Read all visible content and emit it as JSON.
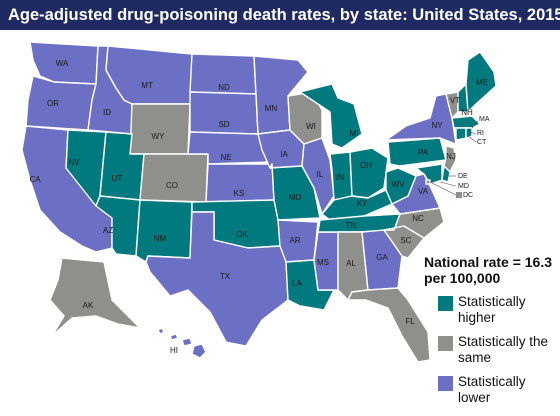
{
  "title": "Age-adjusted drug-poisoning death rates, by state: United States, 2015",
  "national_rate": "National rate = 16.3 per 100,000",
  "colors": {
    "higher": "#007a7e",
    "same": "#8f8f8c",
    "lower": "#6c70c4",
    "header": "#1f2a63"
  },
  "legend": [
    {
      "key": "higher",
      "label": "Statistically higher"
    },
    {
      "key": "same",
      "label": "Statistically the same"
    },
    {
      "key": "lower",
      "label": "Statistically lower"
    }
  ],
  "states": [
    {
      "abbr": "WA",
      "category": "lower"
    },
    {
      "abbr": "OR",
      "category": "lower"
    },
    {
      "abbr": "CA",
      "category": "lower"
    },
    {
      "abbr": "ID",
      "category": "lower"
    },
    {
      "abbr": "NV",
      "category": "higher"
    },
    {
      "abbr": "MT",
      "category": "lower"
    },
    {
      "abbr": "WY",
      "category": "same"
    },
    {
      "abbr": "UT",
      "category": "higher"
    },
    {
      "abbr": "AZ",
      "category": "higher"
    },
    {
      "abbr": "CO",
      "category": "same"
    },
    {
      "abbr": "NM",
      "category": "higher"
    },
    {
      "abbr": "ND",
      "category": "lower"
    },
    {
      "abbr": "SD",
      "category": "lower"
    },
    {
      "abbr": "NE",
      "category": "lower"
    },
    {
      "abbr": "KS",
      "category": "lower"
    },
    {
      "abbr": "OK",
      "category": "higher"
    },
    {
      "abbr": "TX",
      "category": "lower"
    },
    {
      "abbr": "MN",
      "category": "lower"
    },
    {
      "abbr": "IA",
      "category": "lower"
    },
    {
      "abbr": "MO",
      "category": "higher"
    },
    {
      "abbr": "AR",
      "category": "lower"
    },
    {
      "abbr": "LA",
      "category": "higher"
    },
    {
      "abbr": "WI",
      "category": "same"
    },
    {
      "abbr": "IL",
      "category": "lower"
    },
    {
      "abbr": "MS",
      "category": "lower"
    },
    {
      "abbr": "MI",
      "category": "higher"
    },
    {
      "abbr": "IN",
      "category": "higher"
    },
    {
      "abbr": "OH",
      "category": "higher"
    },
    {
      "abbr": "KY",
      "category": "higher"
    },
    {
      "abbr": "TN",
      "category": "higher"
    },
    {
      "abbr": "AL",
      "category": "same"
    },
    {
      "abbr": "GA",
      "category": "lower"
    },
    {
      "abbr": "FL",
      "category": "same"
    },
    {
      "abbr": "SC",
      "category": "same"
    },
    {
      "abbr": "NC",
      "category": "same"
    },
    {
      "abbr": "VA",
      "category": "lower"
    },
    {
      "abbr": "WV",
      "category": "higher"
    },
    {
      "abbr": "PA",
      "category": "higher"
    },
    {
      "abbr": "NY",
      "category": "lower"
    },
    {
      "abbr": "VT",
      "category": "same"
    },
    {
      "abbr": "NH",
      "category": "higher"
    },
    {
      "abbr": "ME",
      "category": "higher"
    },
    {
      "abbr": "MA",
      "category": "higher"
    },
    {
      "abbr": "RI",
      "category": "higher"
    },
    {
      "abbr": "CT",
      "category": "higher"
    },
    {
      "abbr": "NJ",
      "category": "same"
    },
    {
      "abbr": "DE",
      "category": "higher"
    },
    {
      "abbr": "MD",
      "category": "higher"
    },
    {
      "abbr": "DC",
      "category": "same"
    },
    {
      "abbr": "AK",
      "category": "same"
    },
    {
      "abbr": "HI",
      "category": "lower"
    }
  ]
}
